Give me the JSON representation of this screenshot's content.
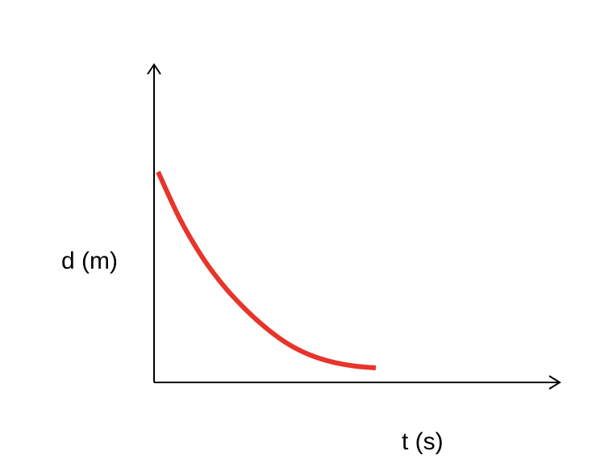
{
  "chart_data": {
    "type": "line",
    "title": "",
    "xlabel": "t (s)",
    "ylabel": "d (m)",
    "ticks": "none",
    "grid": false,
    "legend": "none",
    "series": [
      {
        "color": "#e8342a",
        "x": [
          0,
          0.1,
          0.2,
          0.3,
          0.4,
          0.5,
          0.6,
          0.7,
          0.8,
          0.9,
          1.0
        ],
        "y": [
          1.0,
          0.76,
          0.57,
          0.42,
          0.3,
          0.2,
          0.12,
          0.065,
          0.03,
          0.01,
          0.0
        ]
      }
    ],
    "colors": {
      "axis": "#000000",
      "curve": "#e8342a"
    }
  }
}
